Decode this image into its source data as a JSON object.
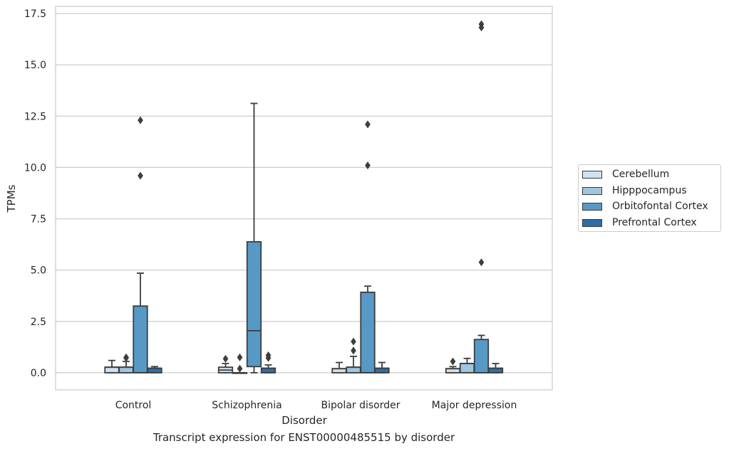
{
  "chart_data": {
    "type": "box",
    "title": "",
    "caption": "Transcript expression for ENST00000485515 by disorder",
    "xlabel": "Disorder",
    "ylabel": "TPMs",
    "ylim": [
      -0.8,
      17.8
    ],
    "yticks": [
      "0.0",
      "2.5",
      "5.0",
      "7.5",
      "10.0",
      "12.5",
      "15.0",
      "17.5"
    ],
    "grid": true,
    "legend_position": "right",
    "categories": [
      "Control",
      "Schizophrenia",
      "Bipolar disorder",
      "Major depression"
    ],
    "series": [
      {
        "name": "Cerebellum",
        "color": "#d1e1ee",
        "boxes": [
          {
            "whisker_low": 0.0,
            "q1": 0.0,
            "median": 0.27,
            "q3": 0.27,
            "whisker_high": 0.6,
            "outliers": []
          },
          {
            "whisker_low": 0.0,
            "q1": 0.0,
            "median": 0.13,
            "q3": 0.27,
            "whisker_high": 0.45,
            "outliers": [
              0.68
            ]
          },
          {
            "whisker_low": 0.0,
            "q1": 0.0,
            "median": 0.2,
            "q3": 0.2,
            "whisker_high": 0.5,
            "outliers": []
          },
          {
            "whisker_low": 0.0,
            "q1": 0.0,
            "median": 0.2,
            "q3": 0.2,
            "whisker_high": 0.3,
            "outliers": [
              0.55
            ]
          }
        ]
      },
      {
        "name": "Hipppocampus",
        "color": "#9fc6df",
        "boxes": [
          {
            "whisker_low": 0.0,
            "q1": 0.0,
            "median": 0.27,
            "q3": 0.27,
            "whisker_high": 0.55,
            "outliers": [
              0.75,
              0.72
            ]
          },
          {
            "whisker_low": 0.0,
            "q1": 0.0,
            "median": 0.0,
            "q3": 0.0,
            "whisker_high": 0.0,
            "outliers": [
              0.2,
              0.75
            ]
          },
          {
            "whisker_low": 0.0,
            "q1": 0.0,
            "median": 0.27,
            "q3": 0.27,
            "whisker_high": 0.8,
            "outliers": [
              1.08,
              1.52
            ]
          },
          {
            "whisker_low": 0.0,
            "q1": 0.0,
            "median": 0.45,
            "q3": 0.45,
            "whisker_high": 0.7,
            "outliers": []
          }
        ]
      },
      {
        "name": "Orbitofontal Cortex",
        "color": "#5699c6",
        "boxes": [
          {
            "whisker_low": 0.0,
            "q1": 0.0,
            "median": 0.0,
            "q3": 3.25,
            "whisker_high": 4.85,
            "outliers": [
              9.6,
              12.3
            ]
          },
          {
            "whisker_low": 0.0,
            "q1": 0.3,
            "median": 2.05,
            "q3": 6.38,
            "whisker_high": 13.12,
            "outliers": []
          },
          {
            "whisker_low": 0.0,
            "q1": 0.0,
            "median": 0.0,
            "q3": 3.92,
            "whisker_high": 4.22,
            "outliers": [
              10.1,
              12.1
            ]
          },
          {
            "whisker_low": 0.0,
            "q1": 0.0,
            "median": 0.0,
            "q3": 1.62,
            "whisker_high": 1.82,
            "outliers": [
              5.38,
              16.82,
              16.98
            ]
          }
        ]
      },
      {
        "name": "Prefrontal Cortex",
        "color": "#2d6ea8",
        "boxes": [
          {
            "whisker_low": 0.0,
            "q1": 0.0,
            "median": 0.22,
            "q3": 0.22,
            "whisker_high": 0.3,
            "outliers": []
          },
          {
            "whisker_low": 0.0,
            "q1": 0.0,
            "median": 0.22,
            "q3": 0.22,
            "whisker_high": 0.38,
            "outliers": [
              0.72,
              0.85
            ]
          },
          {
            "whisker_low": 0.0,
            "q1": 0.0,
            "median": 0.22,
            "q3": 0.22,
            "whisker_high": 0.5,
            "outliers": []
          },
          {
            "whisker_low": 0.0,
            "q1": 0.0,
            "median": 0.22,
            "q3": 0.22,
            "whisker_high": 0.45,
            "outliers": []
          }
        ]
      }
    ]
  }
}
